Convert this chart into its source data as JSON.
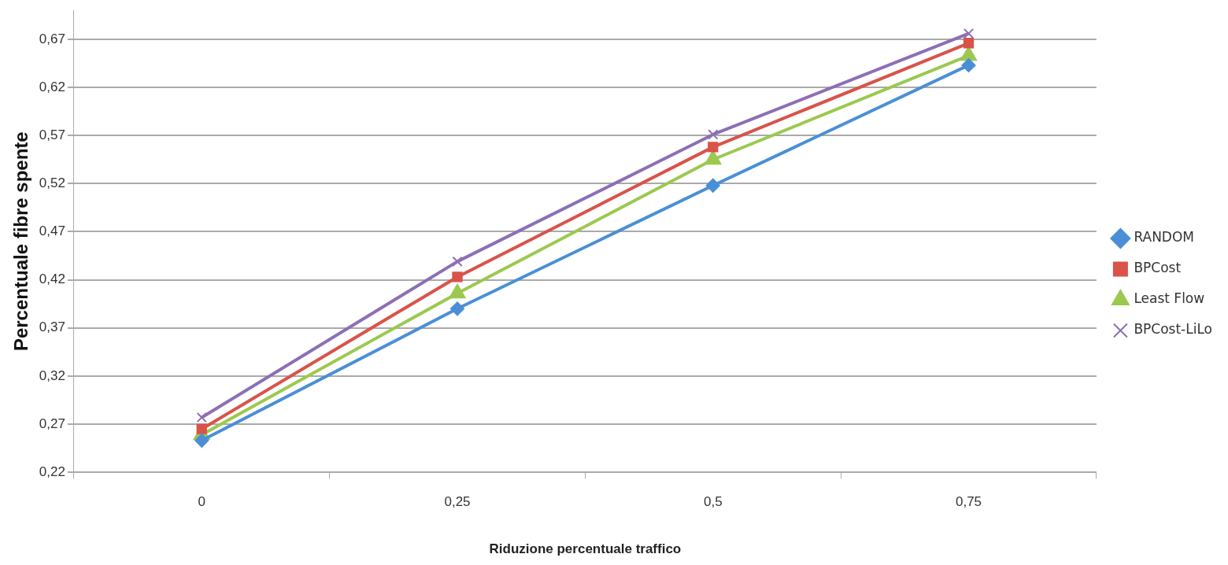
{
  "chart_data": {
    "type": "line",
    "xlabel": "Riduzione percentuale traffico",
    "ylabel": "Percentuale fibre spente",
    "categories": [
      "0",
      "0,25",
      "0,5",
      "0,75"
    ],
    "series": [
      {
        "name": "RANDOM",
        "color": "#4a8fd6",
        "marker": "diamond",
        "values": [
          0.253,
          0.39,
          0.518,
          0.643
        ]
      },
      {
        "name": "BPCost",
        "color": "#d9534a",
        "marker": "square",
        "values": [
          0.265,
          0.423,
          0.558,
          0.666
        ]
      },
      {
        "name": "Least Flow",
        "color": "#9bc94f",
        "marker": "triangle",
        "values": [
          0.259,
          0.406,
          0.545,
          0.653
        ]
      },
      {
        "name": "BPCost-LiLo",
        "color": "#8c6fb5",
        "marker": "cross",
        "values": [
          0.277,
          0.439,
          0.571,
          0.676
        ]
      }
    ],
    "ylim": [
      0.22,
      0.7
    ],
    "yticks": [
      {
        "value": 0.22,
        "label": "0,22"
      },
      {
        "value": 0.27,
        "label": "0,27"
      },
      {
        "value": 0.32,
        "label": "0,32"
      },
      {
        "value": 0.37,
        "label": "0,37"
      },
      {
        "value": 0.42,
        "label": "0,42"
      },
      {
        "value": 0.47,
        "label": "0,47"
      },
      {
        "value": 0.52,
        "label": "0,52"
      },
      {
        "value": 0.57,
        "label": "0,57"
      },
      {
        "value": 0.62,
        "label": "0,62"
      },
      {
        "value": 0.67,
        "label": "0,67"
      }
    ],
    "grid": "y",
    "legend": "right",
    "line_style": "solid"
  }
}
